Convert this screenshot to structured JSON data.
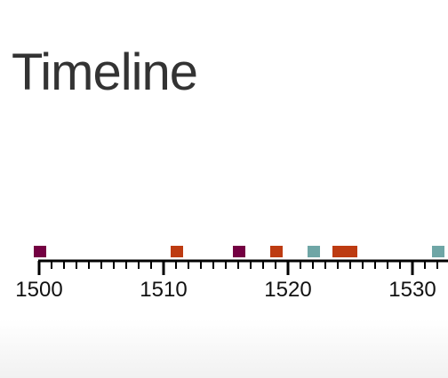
{
  "page": {
    "title": "Timeline"
  },
  "timeline": {
    "axis_range": [
      1500,
      1532
    ],
    "major_labels": [
      "1500",
      "1510",
      "1520",
      "1530"
    ],
    "events": [
      {
        "year": 1500,
        "duration": 1,
        "color": "#740042"
      },
      {
        "year": 1511,
        "duration": 1,
        "color": "#bd3b11"
      },
      {
        "year": 1516,
        "duration": 1,
        "color": "#740042"
      },
      {
        "year": 1519,
        "duration": 1,
        "color": "#bd3b11"
      },
      {
        "year": 1522,
        "duration": 1,
        "color": "#6fa6a6"
      },
      {
        "year": 1524,
        "duration": 2,
        "color": "#bd3b11"
      },
      {
        "year": 1532,
        "duration": 1,
        "color": "#6fa6a6"
      }
    ]
  }
}
